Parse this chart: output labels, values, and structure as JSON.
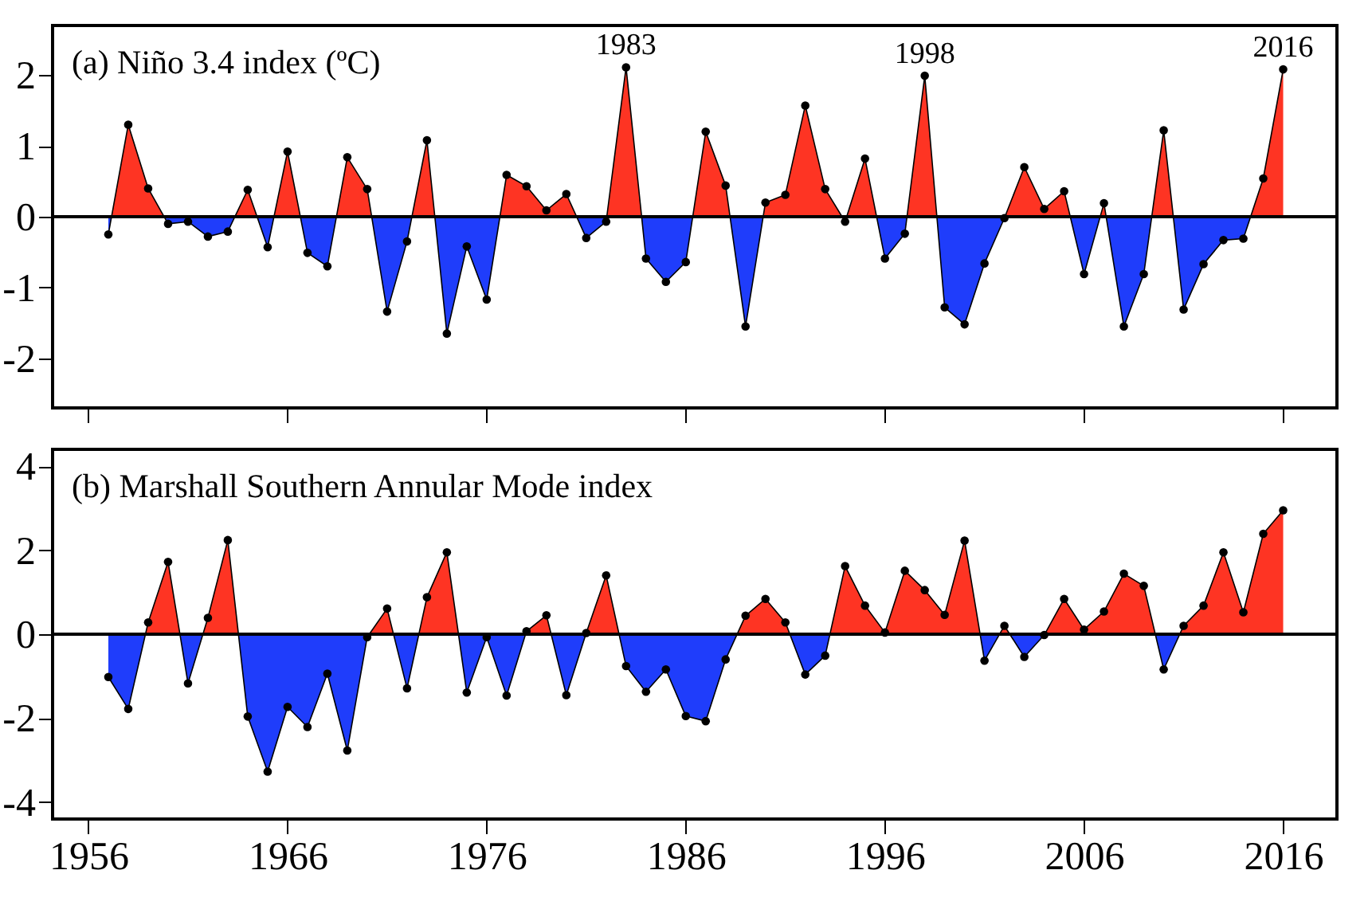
{
  "chart_data": [
    {
      "type": "area",
      "title": "(a) Niño 3.4 index (ºC)",
      "x": [
        1957,
        1958,
        1959,
        1960,
        1961,
        1962,
        1963,
        1964,
        1965,
        1966,
        1967,
        1968,
        1969,
        1970,
        1971,
        1972,
        1973,
        1974,
        1975,
        1976,
        1977,
        1978,
        1979,
        1980,
        1981,
        1982,
        1983,
        1984,
        1985,
        1986,
        1987,
        1988,
        1989,
        1990,
        1991,
        1992,
        1993,
        1994,
        1995,
        1996,
        1997,
        1998,
        1999,
        2000,
        2001,
        2002,
        2003,
        2004,
        2005,
        2006,
        2007,
        2008,
        2009,
        2010,
        2011,
        2012,
        2013,
        2014,
        2015,
        2016
      ],
      "values": [
        -0.25,
        1.3,
        0.4,
        -0.1,
        -0.07,
        -0.28,
        -0.21,
        0.38,
        -0.43,
        0.92,
        -0.51,
        -0.7,
        0.84,
        0.39,
        -1.34,
        -0.35,
        1.08,
        -1.65,
        -0.42,
        -1.17,
        0.59,
        0.43,
        0.09,
        0.32,
        -0.3,
        -0.07,
        2.11,
        -0.59,
        -0.92,
        -0.64,
        1.2,
        0.44,
        -1.55,
        0.2,
        0.31,
        1.57,
        0.39,
        -0.07,
        0.82,
        -0.59,
        -0.24,
        1.99,
        -1.28,
        -1.52,
        -0.66,
        -0.02,
        0.7,
        0.11,
        0.36,
        -0.81,
        0.19,
        -1.55,
        -0.81,
        1.22,
        -1.31,
        -0.67,
        -0.33,
        -0.31,
        0.54,
        2.08
      ],
      "colors": [
        "#1f3dfb",
        "#fe3423",
        "#fe3423",
        "#1f3dfb",
        "#1f3dfb",
        "#1f3dfb",
        "#1f3dfb",
        "#fe3423",
        "#1f3dfb",
        "#fe3423",
        "#1f3dfb",
        "#1f3dfb",
        "#fe3423",
        "#fe3423",
        "#1f3dfb",
        "#1f3dfb",
        "#fe3423",
        "#1f3dfb",
        "#1f3dfb",
        "#1f3dfb",
        "#fe3423",
        "#fe3423",
        "#fe3423",
        "#fe3423",
        "#1f3dfb",
        "#1f3dfb",
        "#fe3423",
        "#1f3dfb",
        "#1f3dfb",
        "#1f3dfb",
        "#fe3423",
        "#fe3423",
        "#1f3dfb",
        "#fe3423",
        "#fe3423",
        "#fe3423",
        "#fe3423",
        "#1f3dfb",
        "#fe3423",
        "#1f3dfb",
        "#1f3dfb",
        "#fe3423",
        "#1f3dfb",
        "#1f3dfb",
        "#1f3dfb",
        "#1f3dfb",
        "#fe3423",
        "#fe3423",
        "#fe3423",
        "#1f3dfb",
        "#fe3423",
        "#1f3dfb",
        "#1f3dfb",
        "#fe3423",
        "#1f3dfb",
        "#1f3dfb",
        "#1f3dfb",
        "#1f3dfb",
        "#fe3423",
        "#fe3423"
      ],
      "marker": "circle",
      "xlim": [
        1954.2,
        2018.7
      ],
      "xticks": [
        1956,
        1966,
        1976,
        1986,
        1996,
        2006,
        2016
      ],
      "ylim": [
        -2.7,
        2.7
      ],
      "yticks": [
        -2,
        -1,
        0,
        1,
        2
      ],
      "tick_labels": "y",
      "grid": false,
      "legend": false,
      "ref_lines": [
        {
          "axis": "y",
          "value": 0,
          "color": "#000000"
        }
      ],
      "annotations": [
        {
          "text": "1983",
          "x": 1983,
          "y": 2.11
        },
        {
          "text": "1998",
          "x": 1998,
          "y": 1.99
        },
        {
          "text": "2016",
          "x": 2016,
          "y": 2.08
        }
      ]
    },
    {
      "type": "area",
      "title": "(b) Marshall Southern Annular Mode index",
      "x": [
        1957,
        1958,
        1959,
        1960,
        1961,
        1962,
        1963,
        1964,
        1965,
        1966,
        1967,
        1968,
        1969,
        1970,
        1971,
        1972,
        1973,
        1974,
        1975,
        1976,
        1977,
        1978,
        1979,
        1980,
        1981,
        1982,
        1983,
        1984,
        1985,
        1986,
        1987,
        1988,
        1989,
        1990,
        1991,
        1992,
        1993,
        1994,
        1995,
        1996,
        1997,
        1998,
        1999,
        2000,
        2001,
        2002,
        2003,
        2004,
        2005,
        2006,
        2007,
        2008,
        2009,
        2010,
        2011,
        2012,
        2013,
        2014,
        2015,
        2016
      ],
      "values": [
        -1.02,
        -1.78,
        0.28,
        1.72,
        -1.17,
        0.39,
        2.24,
        -1.96,
        -3.27,
        -1.73,
        -2.21,
        -0.94,
        -2.77,
        -0.07,
        0.61,
        -1.29,
        0.88,
        1.95,
        -1.39,
        -0.07,
        -1.46,
        0.07,
        0.45,
        -1.45,
        0.03,
        1.4,
        -0.76,
        -1.37,
        -0.84,
        -1.95,
        -2.07,
        -0.6,
        0.44,
        0.84,
        0.28,
        -0.96,
        -0.51,
        1.62,
        0.68,
        0.04,
        1.51,
        1.05,
        0.46,
        2.23,
        -0.63,
        0.2,
        -0.54,
        -0.02,
        0.84,
        0.11,
        0.54,
        1.44,
        1.15,
        -0.84,
        0.2,
        0.68,
        1.95,
        0.52,
        2.39,
        2.95
      ],
      "colors": [
        "#1f3dfb",
        "#1f3dfb",
        "#fe3423",
        "#fe3423",
        "#1f3dfb",
        "#fe3423",
        "#fe3423",
        "#1f3dfb",
        "#1f3dfb",
        "#1f3dfb",
        "#1f3dfb",
        "#1f3dfb",
        "#1f3dfb",
        "#1f3dfb",
        "#fe3423",
        "#1f3dfb",
        "#fe3423",
        "#fe3423",
        "#1f3dfb",
        "#1f3dfb",
        "#1f3dfb",
        "#fe3423",
        "#fe3423",
        "#1f3dfb",
        "#fe3423",
        "#fe3423",
        "#1f3dfb",
        "#1f3dfb",
        "#1f3dfb",
        "#1f3dfb",
        "#1f3dfb",
        "#1f3dfb",
        "#fe3423",
        "#fe3423",
        "#fe3423",
        "#1f3dfb",
        "#1f3dfb",
        "#fe3423",
        "#fe3423",
        "#fe3423",
        "#fe3423",
        "#fe3423",
        "#fe3423",
        "#fe3423",
        "#1f3dfb",
        "#fe3423",
        "#1f3dfb",
        "#1f3dfb",
        "#fe3423",
        "#fe3423",
        "#fe3423",
        "#fe3423",
        "#fe3423",
        "#1f3dfb",
        "#fe3423",
        "#fe3423",
        "#fe3423",
        "#fe3423",
        "#fe3423",
        "#fe3423"
      ],
      "marker": "circle",
      "xlim": [
        1954.2,
        2018.7
      ],
      "xticks": [
        1956,
        1966,
        1976,
        1986,
        1996,
        2006,
        2016
      ],
      "ylim": [
        -4.4,
        4.4
      ],
      "yticks": [
        -4,
        -2,
        0,
        2,
        4
      ],
      "grid": false,
      "legend": false,
      "ref_lines": [
        {
          "axis": "y",
          "value": 0,
          "color": "#000000"
        }
      ]
    }
  ]
}
